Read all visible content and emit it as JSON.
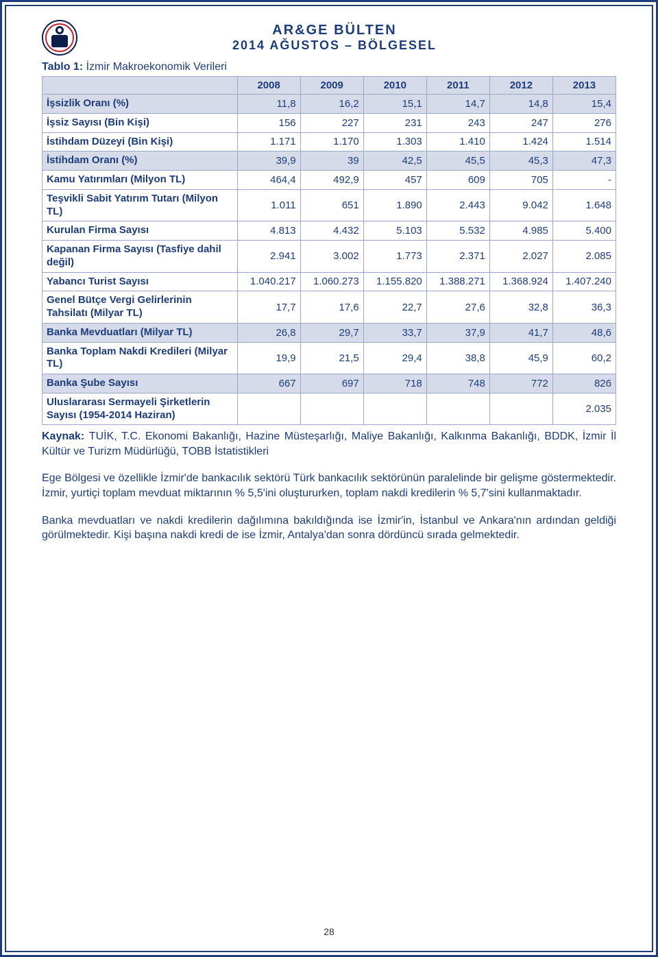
{
  "header": {
    "title": "AR&GE BÜLTEN",
    "subtitle": "2014 AĞUSTOS – BÖLGESEL"
  },
  "table": {
    "title_prefix": "Tablo 1: ",
    "title": "İzmir Makroekonomik Verileri",
    "columns": [
      "2008",
      "2009",
      "2010",
      "2011",
      "2012",
      "2013"
    ],
    "col_width_label": "34%",
    "col_width_num": "11%",
    "header_bg": "#d6dbea",
    "shaded_bg": "#d6dbea",
    "border_color": "#9ca8c8",
    "text_color": "#1d3c7a",
    "rows": [
      {
        "label": "İşsizlik Oranı (%)",
        "values": [
          "11,8",
          "16,2",
          "15,1",
          "14,7",
          "14,8",
          "15,4"
        ],
        "shaded": true
      },
      {
        "label": "İşsiz Sayısı (Bin Kişi)",
        "values": [
          "156",
          "227",
          "231",
          "243",
          "247",
          "276"
        ],
        "shaded": false
      },
      {
        "label": "İstihdam Düzeyi (Bin Kişi)",
        "values": [
          "1.171",
          "1.170",
          "1.303",
          "1.410",
          "1.424",
          "1.514"
        ],
        "shaded": false
      },
      {
        "label": "İstihdam Oranı (%)",
        "values": [
          "39,9",
          "39",
          "42,5",
          "45,5",
          "45,3",
          "47,3"
        ],
        "shaded": true
      },
      {
        "label": "Kamu Yatırımları (Milyon TL)",
        "values": [
          "464,4",
          "492,9",
          "457",
          "609",
          "705",
          "-"
        ],
        "shaded": false
      },
      {
        "label": "Teşvikli Sabit Yatırım Tutarı (Milyon TL)",
        "values": [
          "1.011",
          "651",
          "1.890",
          "2.443",
          "9.042",
          "1.648"
        ],
        "shaded": false
      },
      {
        "label": "Kurulan Firma Sayısı",
        "values": [
          "4.813",
          "4.432",
          "5.103",
          "5.532",
          "4.985",
          "5.400"
        ],
        "shaded": false
      },
      {
        "label": "Kapanan Firma Sayısı (Tasfiye dahil değil)",
        "values": [
          "2.941",
          "3.002",
          "1.773",
          "2.371",
          "2.027",
          "2.085"
        ],
        "shaded": false
      },
      {
        "label": "Yabancı Turist Sayısı",
        "values": [
          "1.040.217",
          "1.060.273",
          "1.155.820",
          "1.388.271",
          "1.368.924",
          "1.407.240"
        ],
        "shaded": false
      },
      {
        "label": "Genel Bütçe Vergi Gelirlerinin Tahsilatı (Milyar TL)",
        "values": [
          "17,7",
          "17,6",
          "22,7",
          "27,6",
          "32,8",
          "36,3"
        ],
        "shaded": false
      },
      {
        "label": "Banka Mevduatları (Milyar TL)",
        "values": [
          "26,8",
          "29,7",
          "33,7",
          "37,9",
          "41,7",
          "48,6"
        ],
        "shaded": true
      },
      {
        "label": "Banka Toplam Nakdi Kredileri (Milyar TL)",
        "values": [
          "19,9",
          "21,5",
          "29,4",
          "38,8",
          "45,9",
          "60,2"
        ],
        "shaded": false
      },
      {
        "label": "Banka Şube Sayısı",
        "values": [
          "667",
          "697",
          "718",
          "748",
          "772",
          "826"
        ],
        "shaded": true
      },
      {
        "label": "Uluslararası Sermayeli Şirketlerin Sayısı (1954-2014 Haziran)",
        "values": [
          "",
          "",
          "",
          "",
          "",
          "2.035"
        ],
        "shaded": false
      }
    ]
  },
  "source": {
    "label": "Kaynak: ",
    "text": "TUİK, T.C. Ekonomi Bakanlığı, Hazine Müsteşarlığı, Maliye Bakanlığı, Kalkınma Bakanlığı, BDDK, İzmir İl Kültür ve Turizm Müdürlüğü, TOBB İstatistikleri"
  },
  "paragraph1": "Ege Bölgesi ve özellikle İzmir'de bankacılık sektörü Türk bankacılık sektörünün paralelinde bir gelişme göstermektedir. İzmir, yurtiçi toplam mevduat miktarının % 5,5'ini oluştururken, toplam nakdi kredilerin % 5,7'sini kullanmaktadır.",
  "paragraph2": "Banka mevduatları ve nakdi kredilerin dağılımına bakıldığında ise İzmir'in, İstanbul ve Ankara'nın ardından geldiği görülmektedir. Kişi başına nakdi kredi de ise İzmir, Antalya'dan sonra dördüncü sırada gelmektedir.",
  "page_number": "28",
  "colors": {
    "brand": "#1d3c7a",
    "logo_red": "#c51f2d",
    "logo_dark": "#0b1e4a"
  }
}
